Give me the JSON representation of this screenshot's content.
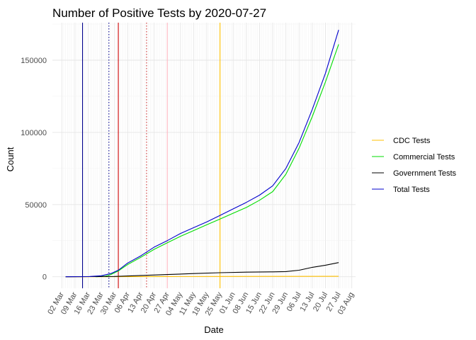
{
  "chart_data": {
    "type": "line",
    "title": "Number of Positive Tests by  2020-07-27",
    "xlabel": "Date",
    "ylabel": "Count",
    "x_range": [
      "2020-02-26",
      "2020-08-05"
    ],
    "y_range": [
      -8000,
      176000
    ],
    "grid": true,
    "legend_position": "right",
    "x_ticks": [
      "2020-03-02",
      "2020-03-09",
      "2020-03-16",
      "2020-03-23",
      "2020-03-30",
      "2020-04-06",
      "2020-04-13",
      "2020-04-20",
      "2020-04-27",
      "2020-05-04",
      "2020-05-11",
      "2020-05-18",
      "2020-05-25",
      "2020-06-01",
      "2020-06-08",
      "2020-06-15",
      "2020-06-22",
      "2020-06-29",
      "2020-07-06",
      "2020-07-13",
      "2020-07-20",
      "2020-07-27",
      "2020-08-03"
    ],
    "x_tick_labels": [
      "02 Mar",
      "09 Mar",
      "16 Mar",
      "23 Mar",
      "30 Mar",
      "06 Apr",
      "13 Apr",
      "20 Apr",
      "27 Apr",
      "04 May",
      "11 May",
      "18 May",
      "25 May",
      "01 Jun",
      "08 Jun",
      "15 Jun",
      "22 Jun",
      "29 Jun",
      "06 Jul",
      "13 Jul",
      "20 Jul",
      "27 Jul",
      "03 Aug"
    ],
    "y_ticks": [
      0,
      50000,
      100000,
      150000
    ],
    "y_tick_labels": [
      "0",
      "50000",
      "100000",
      "150000"
    ],
    "series": [
      {
        "name": "CDC Tests",
        "color": "#ffc000",
        "points": [
          [
            "2020-03-04",
            0
          ],
          [
            "2020-04-01",
            50
          ],
          [
            "2020-04-27",
            150
          ],
          [
            "2020-05-25",
            200
          ],
          [
            "2020-06-29",
            250
          ],
          [
            "2020-07-27",
            300
          ]
        ]
      },
      {
        "name": "Commercial Tests",
        "color": "#00dd00",
        "points": [
          [
            "2020-03-20",
            0
          ],
          [
            "2020-03-25",
            300
          ],
          [
            "2020-03-28",
            1500
          ],
          [
            "2020-04-01",
            4000
          ],
          [
            "2020-04-06",
            8500
          ],
          [
            "2020-04-13",
            13500
          ],
          [
            "2020-04-20",
            19000
          ],
          [
            "2020-04-27",
            23500
          ],
          [
            "2020-05-04",
            28000
          ],
          [
            "2020-05-11",
            32000
          ],
          [
            "2020-05-18",
            36000
          ],
          [
            "2020-05-25",
            40000
          ],
          [
            "2020-06-01",
            44000
          ],
          [
            "2020-06-08",
            48000
          ],
          [
            "2020-06-15",
            53000
          ],
          [
            "2020-06-22",
            59000
          ],
          [
            "2020-06-29",
            71000
          ],
          [
            "2020-07-06",
            89000
          ],
          [
            "2020-07-13",
            111000
          ],
          [
            "2020-07-20",
            135000
          ],
          [
            "2020-07-27",
            161000
          ]
        ]
      },
      {
        "name": "Government Tests",
        "color": "#000000",
        "points": [
          [
            "2020-03-04",
            0
          ],
          [
            "2020-03-30",
            200
          ],
          [
            "2020-04-13",
            900
          ],
          [
            "2020-04-27",
            1500
          ],
          [
            "2020-05-11",
            2200
          ],
          [
            "2020-05-25",
            2800
          ],
          [
            "2020-06-08",
            3200
          ],
          [
            "2020-06-22",
            3400
          ],
          [
            "2020-06-29",
            3600
          ],
          [
            "2020-07-06",
            4500
          ],
          [
            "2020-07-13",
            6500
          ],
          [
            "2020-07-20",
            8000
          ],
          [
            "2020-07-27",
            9800
          ]
        ]
      },
      {
        "name": "Total Tests",
        "color": "#0000cc",
        "points": [
          [
            "2020-03-04",
            0
          ],
          [
            "2020-03-16",
            100
          ],
          [
            "2020-03-23",
            700
          ],
          [
            "2020-03-28",
            2200
          ],
          [
            "2020-04-01",
            4500
          ],
          [
            "2020-04-06",
            9500
          ],
          [
            "2020-04-13",
            14500
          ],
          [
            "2020-04-20",
            20500
          ],
          [
            "2020-04-27",
            25000
          ],
          [
            "2020-05-04",
            30000
          ],
          [
            "2020-05-11",
            34000
          ],
          [
            "2020-05-18",
            38000
          ],
          [
            "2020-05-25",
            42500
          ],
          [
            "2020-06-01",
            47000
          ],
          [
            "2020-06-08",
            51500
          ],
          [
            "2020-06-15",
            56500
          ],
          [
            "2020-06-22",
            63000
          ],
          [
            "2020-06-29",
            75000
          ],
          [
            "2020-07-06",
            93000
          ],
          [
            "2020-07-13",
            116000
          ],
          [
            "2020-07-20",
            141000
          ],
          [
            "2020-07-27",
            171000
          ]
        ]
      }
    ],
    "reference_lines": [
      {
        "date": "2020-03-13",
        "color": "#00008b",
        "style": "solid"
      },
      {
        "date": "2020-03-27",
        "color": "#00008b",
        "style": "dotted"
      },
      {
        "date": "2020-04-01",
        "color": "#cc0000",
        "style": "solid"
      },
      {
        "date": "2020-04-16",
        "color": "#cc3333",
        "style": "dotted"
      },
      {
        "date": "2020-04-27",
        "color": "#ffb6c1",
        "style": "solid"
      },
      {
        "date": "2020-05-25",
        "color": "#ffc000",
        "style": "solid"
      }
    ]
  }
}
